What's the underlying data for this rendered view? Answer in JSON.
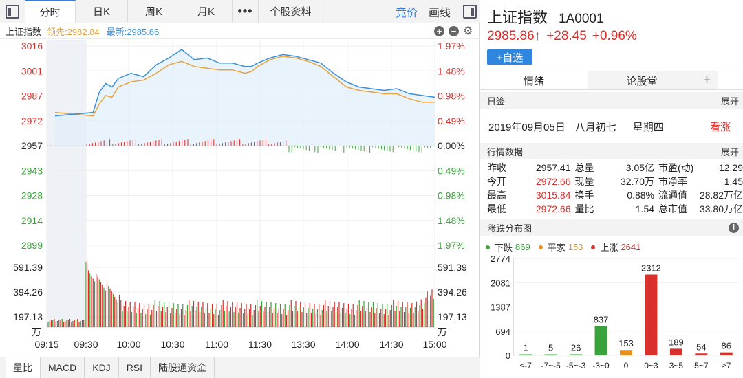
{
  "toolbar": {
    "tabs": [
      "分时",
      "日K",
      "周K",
      "月K",
      "•••",
      "个股资料"
    ],
    "bid_label": "竞价",
    "draw_label": "画线"
  },
  "infobar": {
    "name": "上证指数",
    "lead": "领先:2982.84",
    "latest": "最新:2985.86"
  },
  "chart_data": [
    {
      "type": "line",
      "title": "上证指数 分时",
      "x_ticks": [
        "09:15",
        "09:30",
        "10:00",
        "10:30",
        "11:00",
        "11:30",
        "13:30",
        "14:00",
        "14:30",
        "15:00"
      ],
      "y_left_ticks": [
        "3016",
        "3001",
        "2987",
        "2972",
        "2957",
        "2943",
        "2928",
        "2914",
        "2899"
      ],
      "y_right_ticks": [
        "1.97%",
        "1.48%",
        "0.98%",
        "0.49%",
        "0.00%",
        "0.49%",
        "0.98%",
        "1.48%",
        "1.97%"
      ],
      "ylim": [
        2899,
        3016
      ],
      "prev_close": 2957.41,
      "series": [
        {
          "name": "最新",
          "color": "#3a8fd9",
          "x": [
            0,
            6,
            7,
            8,
            9,
            10,
            12,
            14,
            16,
            18,
            20,
            22,
            24,
            26,
            28,
            30,
            31,
            32,
            34,
            36,
            38,
            40,
            42,
            44,
            46,
            48,
            50,
            52,
            54,
            56,
            58,
            60
          ],
          "values": [
            2975,
            2977,
            2989,
            2994,
            2992,
            2997,
            3000,
            2998,
            3005,
            3009,
            3014,
            3008,
            3009,
            3006,
            3006,
            3004,
            3004,
            3006,
            3009,
            3011,
            3010,
            3008,
            3006,
            3000,
            2995,
            2992,
            2991,
            2990,
            2991,
            2988,
            2987,
            2986
          ]
        },
        {
          "name": "领先",
          "color": "#e8a23c",
          "x": [
            0,
            6,
            7,
            8,
            9,
            10,
            12,
            14,
            16,
            18,
            20,
            22,
            24,
            26,
            28,
            30,
            31,
            32,
            34,
            36,
            38,
            40,
            42,
            44,
            46,
            48,
            50,
            52,
            54,
            56,
            58,
            60
          ],
          "values": [
            2977,
            2975,
            2982,
            2987,
            2986,
            2992,
            2995,
            2996,
            3000,
            3005,
            3007,
            3004,
            3003,
            3002,
            3002,
            3000,
            3001,
            3004,
            3008,
            3010,
            3009,
            3007,
            3004,
            2998,
            2992,
            2990,
            2989,
            2988,
            2988,
            2985,
            2983,
            2983
          ]
        }
      ],
      "volume_ticks": [
        "591.39",
        "394.26",
        "197.13"
      ],
      "volume_unit": "万"
    },
    {
      "type": "bar",
      "title": "涨跌分布图",
      "categories": [
        "≤-7",
        "-7~-5",
        "-5~-3",
        "-3~0",
        "0",
        "0~3",
        "3~5",
        "5~7",
        "≥7"
      ],
      "values": [
        1,
        5,
        26,
        837,
        153,
        2312,
        189,
        54,
        86
      ],
      "colors": [
        "#3aa23a",
        "#3aa23a",
        "#3aa23a",
        "#3aa23a",
        "#e8901c",
        "#d9302c",
        "#d9302c",
        "#d9302c",
        "#d9302c"
      ],
      "y_ticks": [
        "2774",
        "2081",
        "1387",
        "694",
        "0"
      ],
      "ylim": [
        0,
        2774
      ]
    }
  ],
  "bottom_tabs": [
    "量比",
    "MACD",
    "KDJ",
    "RSI",
    "陆股通资金"
  ],
  "stock": {
    "name": "上证指数",
    "code": "1A0001",
    "price": "2985.86↑",
    "change": "+28.45",
    "pct": "+0.96%",
    "watch_label": "+自选"
  },
  "right_tabs": [
    "情绪",
    "论股堂"
  ],
  "plus_label": "+",
  "sections": {
    "day": "日签",
    "quote": "行情数据",
    "dist": "涨跌分布图",
    "expand": "展开"
  },
  "day": {
    "date": "2019年09月05日",
    "lunar": "八月初七",
    "weekday": "星期四",
    "mood": "看涨"
  },
  "quote_rows": [
    [
      "昨收",
      "2957.41",
      "总量",
      "3.05亿",
      "市盈(动)",
      "12.29"
    ],
    [
      "今开",
      "2972.66",
      "现量",
      "32.70万",
      "市净率",
      "1.45"
    ],
    [
      "最高",
      "3015.84",
      "换手",
      "0.88%",
      "流通值",
      "28.82万亿"
    ],
    [
      "最低",
      "2972.66",
      "量比",
      "1.54",
      "总市值",
      "33.80万亿"
    ]
  ],
  "dist_legend": {
    "down_label": "下跌",
    "down": "869",
    "flat_label": "平家",
    "flat": "153",
    "up_label": "上涨",
    "up": "2641"
  }
}
